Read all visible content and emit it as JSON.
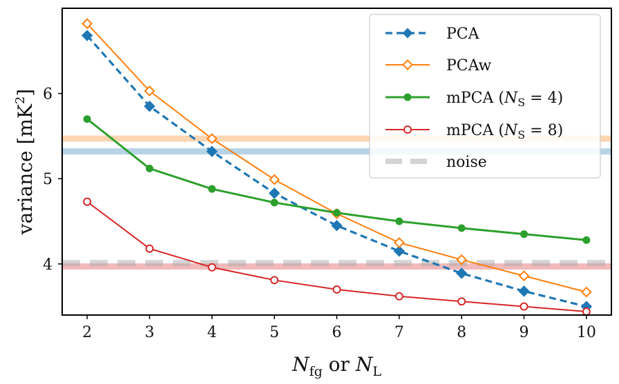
{
  "chart_data": {
    "type": "line",
    "title": "",
    "xlabel_main": "N",
    "xlabel_sub1": "fg",
    "xlabel_or": " or ",
    "xlabel_sub2": "L",
    "ylabel": "variance [mK",
    "ylabel_sup": "2",
    "ylabel_close": "]",
    "x": [
      2,
      3,
      4,
      5,
      6,
      7,
      8,
      9,
      10
    ],
    "xlim": [
      1.6,
      10.4
    ],
    "ylim": [
      3.4,
      7.0
    ],
    "xticks": [
      "2",
      "3",
      "4",
      "5",
      "6",
      "7",
      "8",
      "9",
      "10"
    ],
    "yticks": [
      "4",
      "5",
      "6"
    ],
    "grid": false,
    "legend_position": "upper-right",
    "series": [
      {
        "name": "PCA",
        "label": "PCA",
        "color": "#1f77b4",
        "style": "dashed",
        "marker": "diamond-filled",
        "values": [
          6.68,
          5.85,
          5.32,
          4.83,
          4.45,
          4.15,
          3.89,
          3.68,
          3.5
        ]
      },
      {
        "name": "PCAw",
        "label": "PCAw",
        "color": "#ff7f0e",
        "style": "solid",
        "marker": "diamond-open",
        "values": [
          6.82,
          6.03,
          5.47,
          4.99,
          4.59,
          4.25,
          4.05,
          3.86,
          3.67
        ]
      },
      {
        "name": "mPCA (N_S = 4)",
        "label_pre": "mPCA (",
        "label_var": "N",
        "label_sub": "S",
        "label_post": " = 4)",
        "color": "#2ca02c",
        "style": "solid",
        "marker": "circle-filled",
        "values": [
          5.7,
          5.12,
          4.88,
          4.72,
          4.6,
          4.5,
          4.42,
          4.35,
          4.28
        ]
      },
      {
        "name": "mPCA (N_S = 8)",
        "label_pre": "mPCA (",
        "label_var": "N",
        "label_sub": "S",
        "label_post": " = 8)",
        "color": "#d62728",
        "style": "solid",
        "marker": "circle-open",
        "values": [
          4.73,
          4.18,
          3.96,
          3.81,
          3.7,
          3.62,
          3.56,
          3.5,
          3.44
        ]
      }
    ],
    "hlines": [
      {
        "name": "PCAw reference",
        "color": "#ff7f0e",
        "value": 5.47
      },
      {
        "name": "PCA reference",
        "color": "#1f77b4",
        "value": 5.32
      },
      {
        "name": "mPCA (N_S = 8) reference",
        "color": "#d62728",
        "value": 3.97
      },
      {
        "name": "noise",
        "label": "noise",
        "color": "#aaaaaa",
        "style": "dashed",
        "value": 4.01
      }
    ]
  }
}
